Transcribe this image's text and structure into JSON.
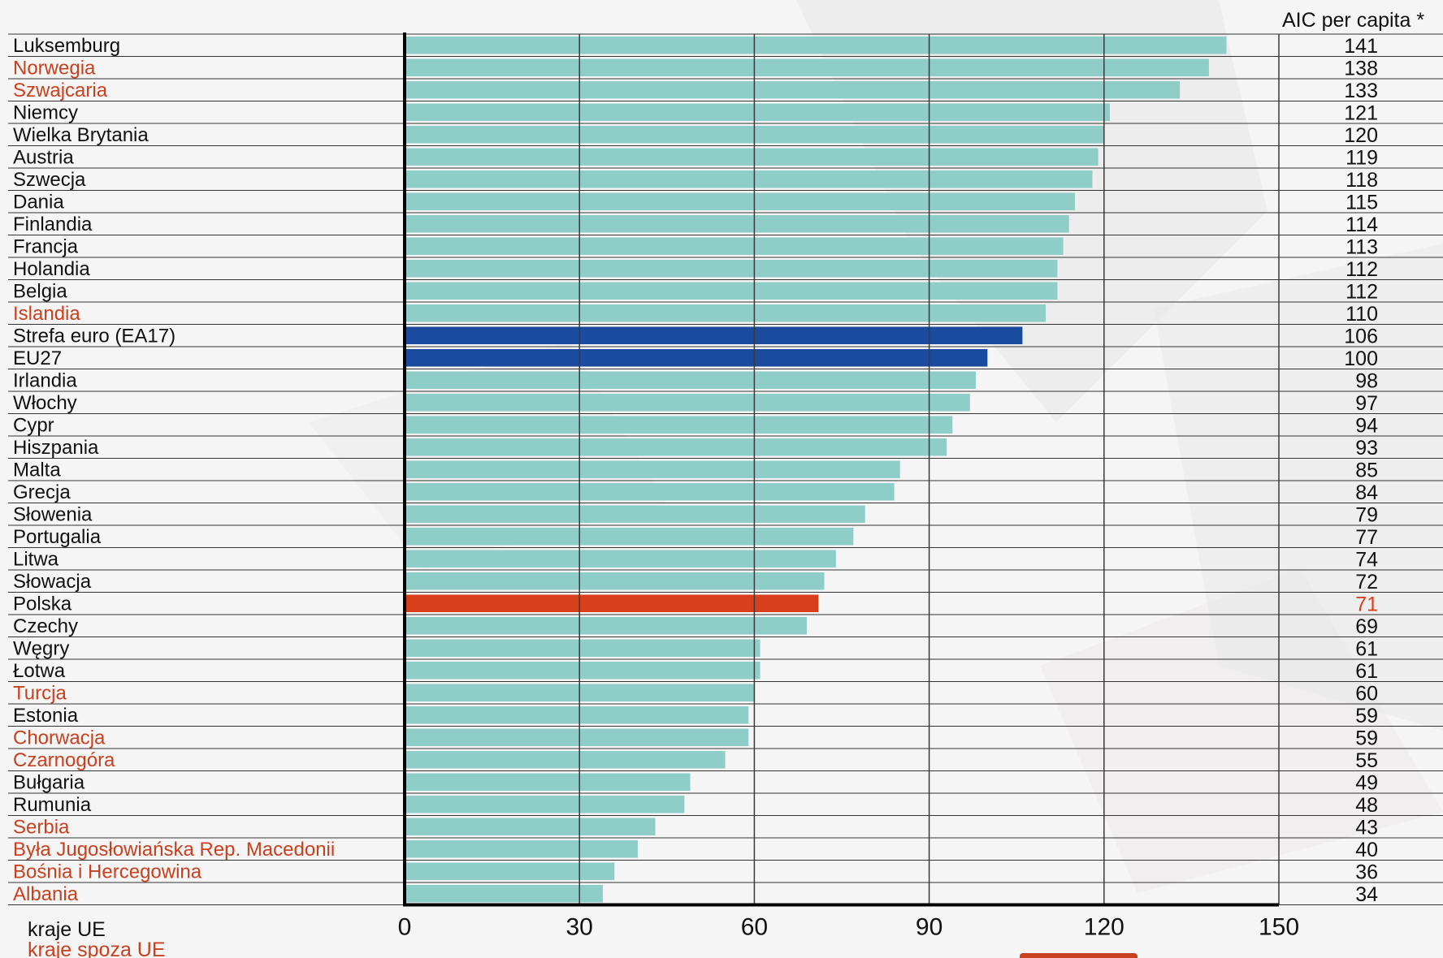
{
  "colors": {
    "eu_bar": "#8fcdc9",
    "aggregate_bar": "#1a4b9c",
    "poland_bar": "#d8401b",
    "non_eu_text": "#c8401e",
    "eu_text": "#111111",
    "axis": "#000000",
    "gridline": "#3a3a3a"
  },
  "legend": {
    "eu": "kraje UE",
    "non_eu": "kraje spoza UE"
  },
  "chart_data": {
    "type": "bar",
    "orientation": "horizontal",
    "value_column_header": "AIC per capita *",
    "xlim": [
      0,
      150
    ],
    "xticks": [
      0,
      30,
      60,
      90,
      120,
      150
    ],
    "grid": true,
    "categories": [
      "Luksemburg",
      "Norwegia",
      "Szwajcaria",
      "Niemcy",
      "Wielka Brytania",
      "Austria",
      "Szwecja",
      "Dania",
      "Finlandia",
      "Francja",
      "Holandia",
      "Belgia",
      "Islandia",
      "Strefa euro (EA17)",
      "EU27",
      "Irlandia",
      "Włochy",
      "Cypr",
      "Hiszpania",
      "Malta",
      "Grecja",
      "Słowenia",
      "Portugalia",
      "Litwa",
      "Słowacja",
      "Polska",
      "Czechy",
      "Węgry",
      "Łotwa",
      "Turcja",
      "Estonia",
      "Chorwacja",
      "Czarnogóra",
      "Bułgaria",
      "Rumunia",
      "Serbia",
      "Była Jugosłowiańska Rep. Macedonii",
      "Bośnia i Hercegowina",
      "Albania"
    ],
    "values": [
      141,
      138,
      133,
      121,
      120,
      119,
      118,
      115,
      114,
      113,
      112,
      112,
      110,
      106,
      100,
      98,
      97,
      94,
      93,
      85,
      84,
      79,
      77,
      74,
      72,
      71,
      69,
      61,
      61,
      60,
      59,
      59,
      55,
      49,
      48,
      43,
      40,
      36,
      34
    ],
    "group": [
      "eu",
      "non_eu",
      "non_eu",
      "eu",
      "eu",
      "eu",
      "eu",
      "eu",
      "eu",
      "eu",
      "eu",
      "eu",
      "non_eu",
      "aggregate",
      "aggregate",
      "eu",
      "eu",
      "eu",
      "eu",
      "eu",
      "eu",
      "eu",
      "eu",
      "eu",
      "eu",
      "highlight",
      "eu",
      "eu",
      "eu",
      "non_eu",
      "eu",
      "non_eu",
      "non_eu",
      "eu",
      "eu",
      "non_eu",
      "non_eu",
      "non_eu",
      "non_eu"
    ]
  }
}
